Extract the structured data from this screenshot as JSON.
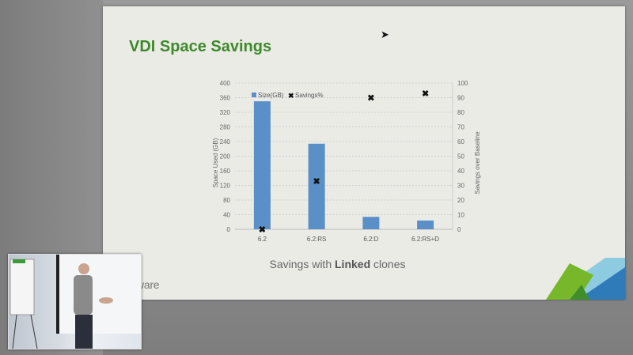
{
  "slide": {
    "title": "VDI Space Savings",
    "caption_pre": "Savings with ",
    "caption_bold": "Linked",
    "caption_post": " clones",
    "logo": "vmware",
    "accent_green": "#3d8a2a"
  },
  "chart_data": {
    "type": "bar",
    "title": "",
    "categories": [
      "6.2",
      "6.2:RS",
      "6.2:D",
      "6.2:RS+D"
    ],
    "series": [
      {
        "name": "Size(GB)",
        "type": "bar",
        "axis": "left",
        "color": "#5b8fc7",
        "values": [
          350,
          234,
          34,
          24
        ]
      },
      {
        "name": "Savings%",
        "type": "scatter",
        "marker": "x",
        "axis": "right",
        "color": "#111111",
        "values": [
          0,
          33,
          90,
          93
        ]
      }
    ],
    "ylabel": "Space Used (GB)",
    "y2label": "Savings over Baseline",
    "ylim": [
      0,
      400
    ],
    "y2lim": [
      0,
      100
    ],
    "yticks": [
      "0",
      "40",
      "80",
      "120",
      "160",
      "200",
      "240",
      "280",
      "320",
      "360",
      "400"
    ],
    "y2ticks": [
      "0",
      "10",
      "20",
      "30",
      "40",
      "50",
      "60",
      "70",
      "80",
      "90",
      "100"
    ],
    "grid": true,
    "legend": "top-left"
  }
}
